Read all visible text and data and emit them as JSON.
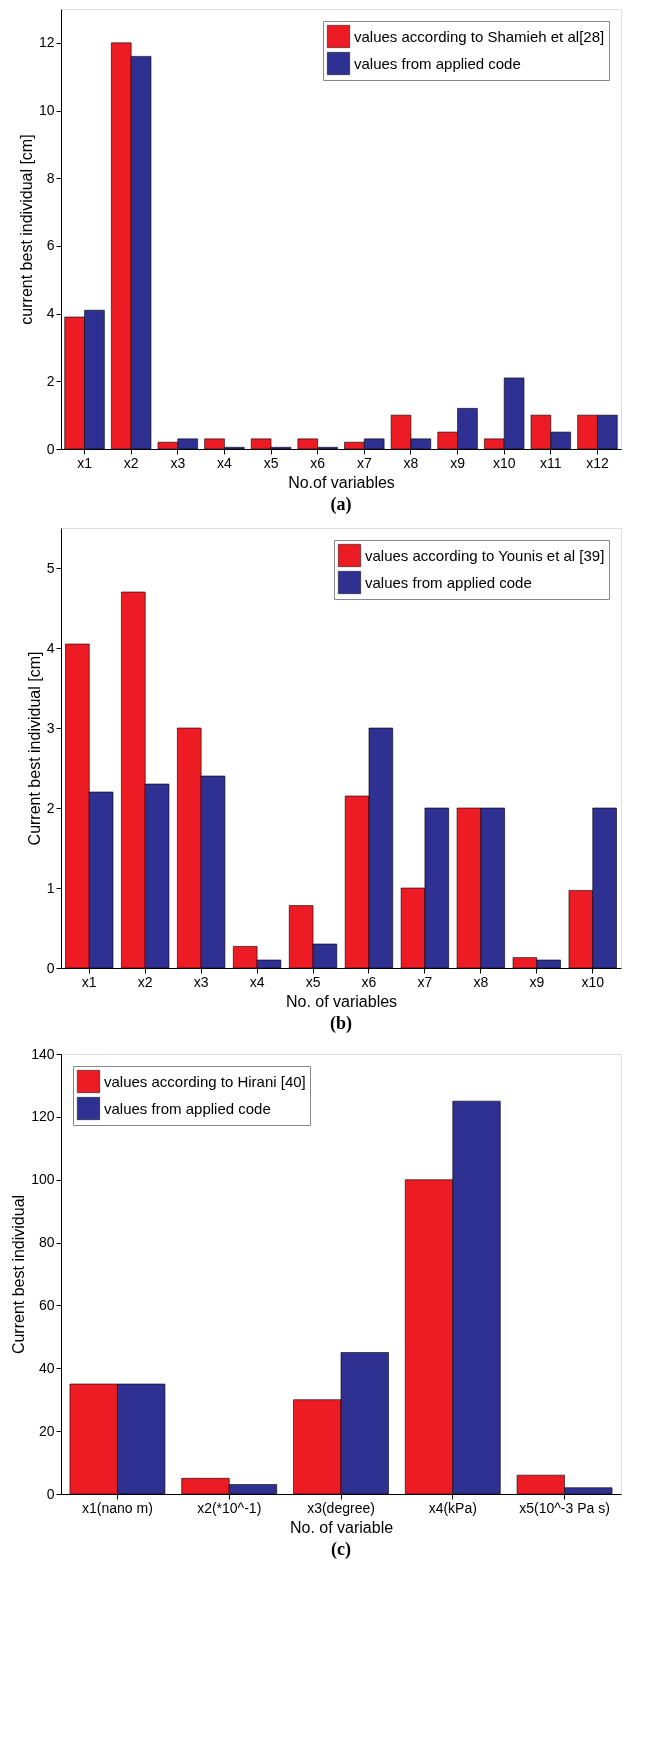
{
  "chart_data": [
    {
      "type": "bar",
      "categories": [
        "x1",
        "x2",
        "x3",
        "x4",
        "x5",
        "x6",
        "x7",
        "x8",
        "x9",
        "x10",
        "x11",
        "x12"
      ],
      "xlabel": "No.of variables",
      "ylabel": "current best individual [cm]",
      "ylim": [
        0,
        13
      ],
      "yticks": [
        0,
        2,
        4,
        6,
        8,
        10,
        12
      ],
      "legend": "top right",
      "annotations": [
        "(a)"
      ],
      "series": [
        {
          "name": "values according to Shamieh et al[28]",
          "color": "#ed1c24",
          "values": [
            3.9,
            12,
            0.2,
            0.3,
            0.3,
            0.3,
            0.2,
            1.0,
            0.5,
            0.3,
            1.0,
            1.0
          ]
        },
        {
          "name": "values from applied code",
          "color": "#2e3192",
          "values": [
            4.1,
            11.6,
            0.3,
            0.05,
            0.05,
            0.05,
            0.3,
            0.3,
            1.2,
            2.1,
            0.5,
            1.0
          ]
        }
      ]
    },
    {
      "type": "bar",
      "categories": [
        "x1",
        "x2",
        "x3",
        "x4",
        "x5",
        "x6",
        "x7",
        "x8",
        "x9",
        "x10"
      ],
      "xlabel": "No. of variables",
      "ylabel": "Current best individual [cm]",
      "ylim": [
        0,
        5.5
      ],
      "yticks": [
        0,
        1,
        2,
        3,
        4,
        5
      ],
      "legend": "top right",
      "annotations": [
        "(b)"
      ],
      "series": [
        {
          "name": "values according to Younis et al [39]",
          "color": "#ed1c24",
          "values": [
            4.05,
            4.7,
            3.0,
            0.27,
            0.78,
            2.15,
            1.0,
            2.0,
            0.13,
            0.97
          ]
        },
        {
          "name": "values from applied code",
          "color": "#2e3192",
          "values": [
            2.2,
            2.3,
            2.4,
            0.1,
            0.3,
            3.0,
            2.0,
            2.0,
            0.1,
            2.0
          ]
        }
      ]
    },
    {
      "type": "bar",
      "categories": [
        "x1(nano m)",
        "x2(*10^-1)",
        "x3(degree)",
        "x4(kPa)",
        "x5(10^-3 Pa s)"
      ],
      "xlabel": "No. of variable",
      "ylabel": "Current best individual",
      "ylim": [
        0,
        140
      ],
      "yticks": [
        0,
        20,
        40,
        60,
        80,
        100,
        120,
        140
      ],
      "legend": "top left",
      "annotations": [
        "(c)"
      ],
      "series": [
        {
          "name": "values according to Hirani [40]",
          "color": "#ed1c24",
          "values": [
            35,
            5,
            30,
            100,
            6
          ]
        },
        {
          "name": "values from applied code",
          "color": "#2e3192",
          "values": [
            35,
            3,
            45,
            125,
            2
          ]
        }
      ]
    }
  ]
}
